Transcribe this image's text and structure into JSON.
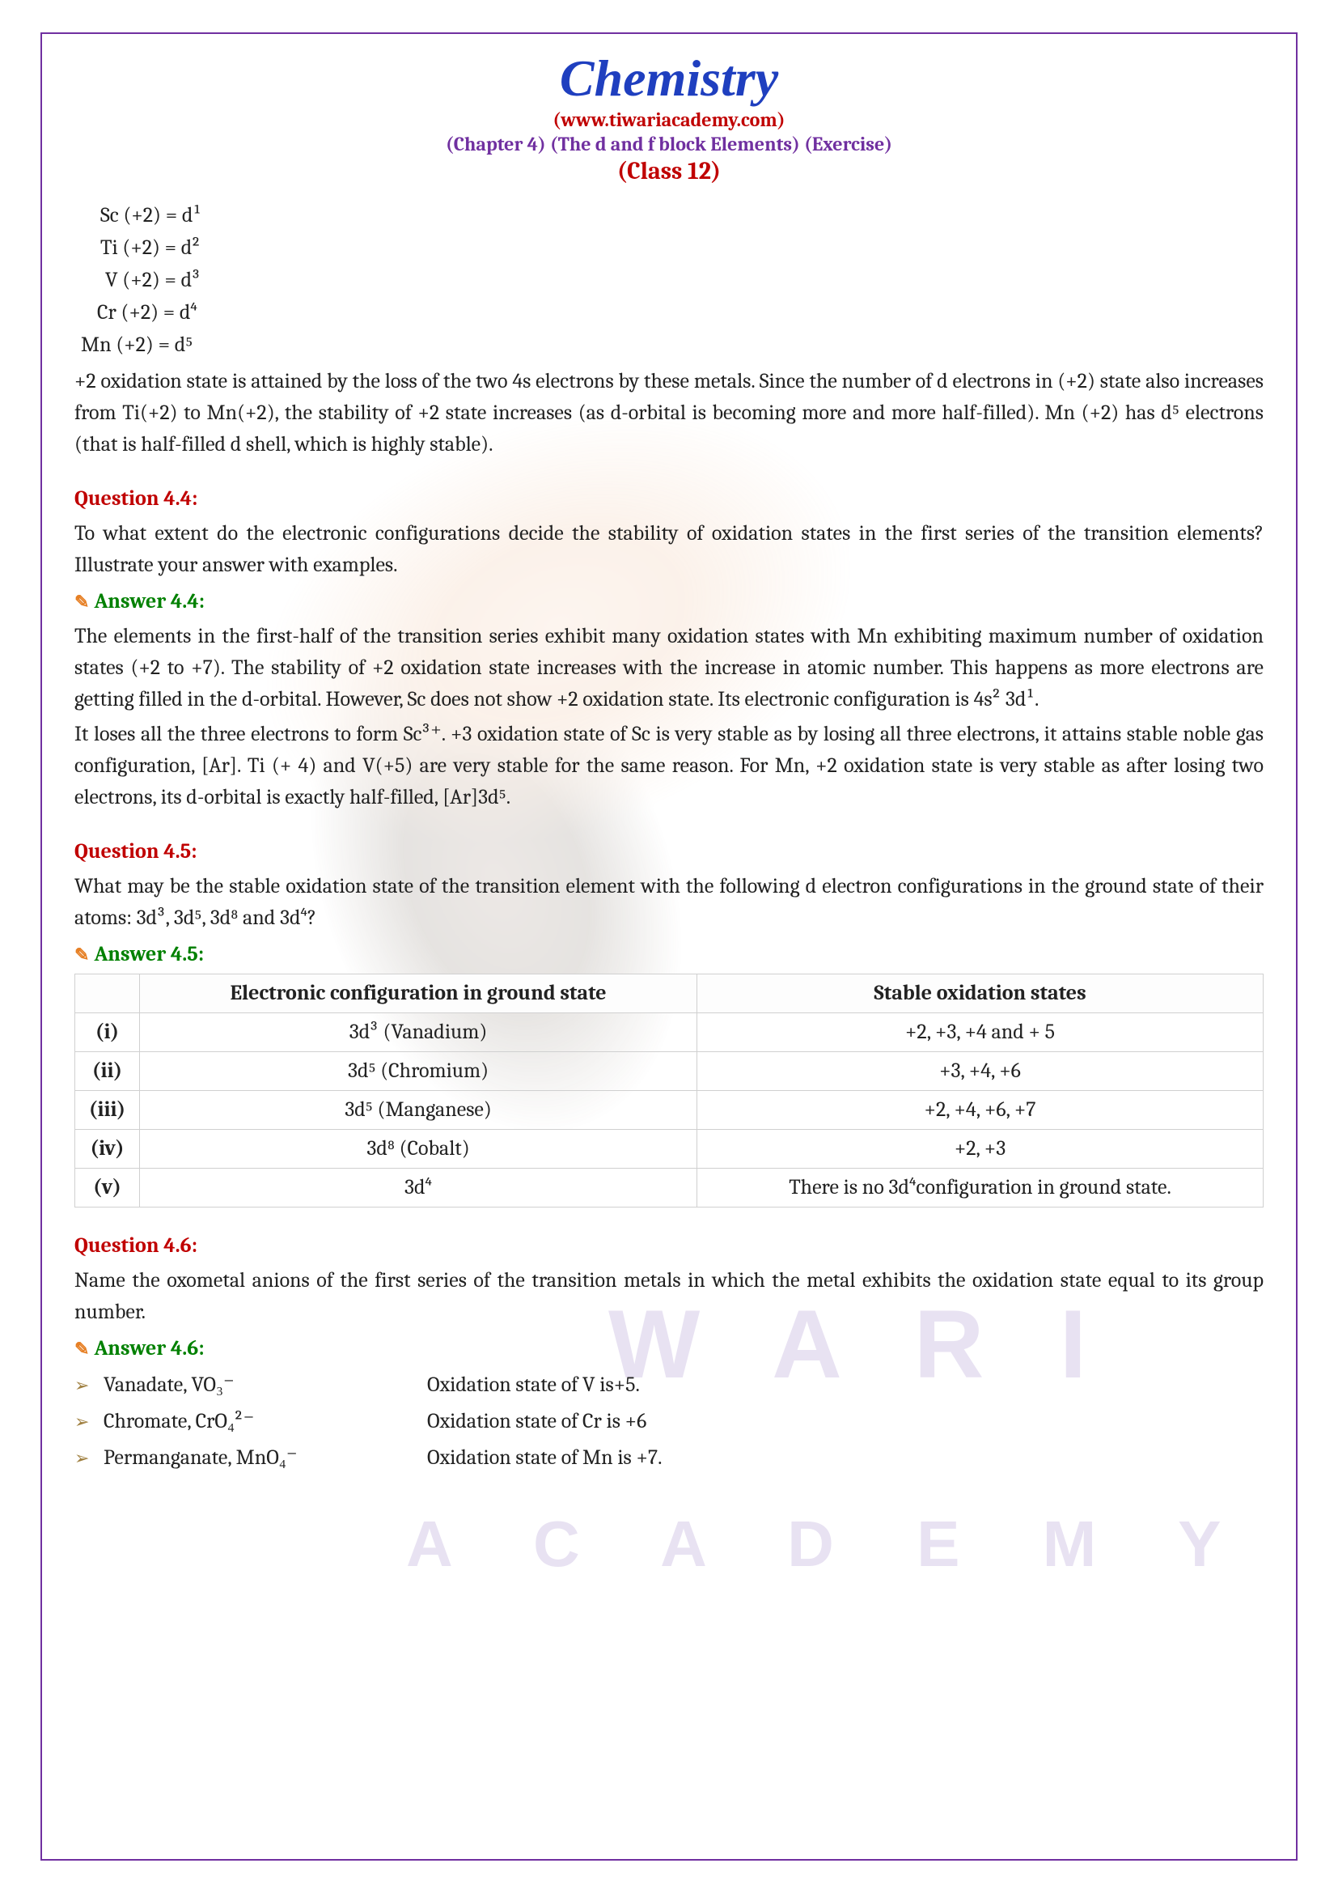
{
  "header": {
    "title": "Chemistry",
    "website": "(www.tiwariacademy.com)",
    "chapter": "(Chapter 4) (The d and f block Elements) (Exercise)",
    "class": "(Class 12)"
  },
  "configs": [
    {
      "el": "Sc",
      "ox": "(+2)",
      "d": "d¹"
    },
    {
      "el": "Ti",
      "ox": "(+2)",
      "d": "d²"
    },
    {
      "el": "V",
      "ox": "(+2)",
      "d": "d³"
    },
    {
      "el": "Cr",
      "ox": "(+2)",
      "d": "d⁴"
    },
    {
      "el": "Mn",
      "ox": "(+2)",
      "d": "d⁵"
    }
  ],
  "intro_para": "+2 oxidation state is attained by the loss of the two 4s electrons by these metals. Since the number of d electrons in (+2) state also increases from Ti(+2) to Mn(+2), the stability of +2 state increases (as d-orbital is becoming more and more half-filled). Mn (+2) has d⁵ electrons (that is half-filled d shell, which is highly stable).",
  "q44": {
    "label": "Question 4.4:",
    "text": "To what extent do the electronic configurations decide the stability of oxidation states in the first series of the transition elements? Illustrate your answer with examples.",
    "answer_label": "Answer 4.4:",
    "answer_p1": "The elements in the first-half of the transition series exhibit many oxidation states with Mn exhibiting maximum number of oxidation states (+2 to +7). The stability of +2 oxidation state increases with the increase in atomic number. This happens as more electrons are getting filled in the d-orbital. However, Sc does not show +2 oxidation state. Its electronic configuration is 4s² 3d¹.",
    "answer_p2": "It loses all the three electrons to form Sc³⁺. +3 oxidation state of Sc is very stable as by losing all three electrons, it attains stable noble gas configuration, [Ar]. Ti (+ 4) and V(+5) are very stable for the same reason. For Mn, +2 oxidation state is very stable as after losing two electrons, its d-orbital is exactly half-filled, [Ar]3d⁵."
  },
  "q45": {
    "label": "Question 4.5:",
    "text": "What may be the stable oxidation state of the transition element with the following d electron configurations in the ground state of their atoms:   3d³, 3d⁵, 3d⁸ and 3d⁴?",
    "answer_label": "Answer 4.5:",
    "table": {
      "headers": [
        "",
        "Electronic configuration in ground state",
        "Stable oxidation states"
      ],
      "rows": [
        {
          "n": "(i)",
          "config": "3d³ (Vanadium)",
          "states": "+2, +3, +4 and + 5"
        },
        {
          "n": "(ii)",
          "config": "3d⁵ (Chromium)",
          "states": "+3, +4, +6"
        },
        {
          "n": "(iii)",
          "config": "3d⁵ (Manganese)",
          "states": "+2, +4, +6, +7"
        },
        {
          "n": "(iv)",
          "config": "3d⁸ (Cobalt)",
          "states": "+2, +3"
        },
        {
          "n": "(v)",
          "config": "3d⁴",
          "states": "There is no 3d⁴configuration in ground state."
        }
      ]
    }
  },
  "q46": {
    "label": "Question 4.6:",
    "text": "Name the oxometal anions of the first series of the transition metals in which the metal exhibits the oxidation state equal to its group number.",
    "answer_label": "Answer 4.6:",
    "anions": [
      {
        "name": "Vanadate, VO₃⁻",
        "state": "Oxidation state of V is+5."
      },
      {
        "name": "Chromate, CrO₄²⁻",
        "state": "Oxidation state of Cr is +6"
      },
      {
        "name": "Permanganate, MnO₄⁻",
        "state": "Oxidation state of Mn is +7."
      }
    ]
  },
  "colors": {
    "border": "#7030a0",
    "title": "#1f3fbf",
    "red": "#c00000",
    "purple": "#7030a0",
    "green": "#008000",
    "text": "#222222",
    "table_border": "#d0d0d0"
  }
}
